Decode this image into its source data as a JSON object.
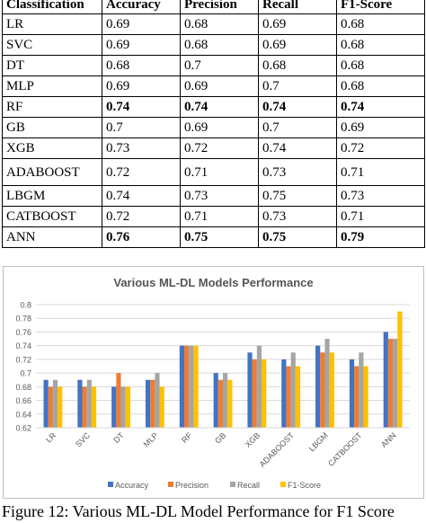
{
  "table": {
    "headers": [
      "Classification",
      "Accuracy",
      "Precision",
      "Recall",
      "F1-Score"
    ],
    "rows": [
      {
        "cells": [
          "LR",
          "0.69",
          "0.68",
          "0.69",
          "0.68"
        ],
        "bold": false,
        "tall": false
      },
      {
        "cells": [
          "SVC",
          "0.69",
          "0.68",
          "0.69",
          "0.68"
        ],
        "bold": false,
        "tall": false
      },
      {
        "cells": [
          "DT",
          "0.68",
          "0.7",
          "0.68",
          "0.68"
        ],
        "bold": false,
        "tall": false
      },
      {
        "cells": [
          "MLP",
          "0.69",
          "0.69",
          "0.7",
          "0.68"
        ],
        "bold": false,
        "tall": false
      },
      {
        "cells": [
          "RF",
          "0.74",
          "0.74",
          "0.74",
          "0.74"
        ],
        "bold": true,
        "tall": false
      },
      {
        "cells": [
          "GB",
          "0.7",
          "0.69",
          "0.7",
          "0.69"
        ],
        "bold": false,
        "tall": false
      },
      {
        "cells": [
          "XGB",
          "0.73",
          "0.72",
          "0.74",
          "0.72"
        ],
        "bold": false,
        "tall": false
      },
      {
        "cells": [
          "ADABOOST",
          "0.72",
          "0.71",
          "0.73",
          "0.71"
        ],
        "bold": false,
        "tall": true
      },
      {
        "cells": [
          "LBGM",
          "0.74",
          "0.73",
          "0.75",
          "0.73"
        ],
        "bold": false,
        "tall": false
      },
      {
        "cells": [
          "CATBOOST",
          "0.72",
          "0.71",
          "0.73",
          "0.71"
        ],
        "bold": false,
        "tall": false
      },
      {
        "cells": [
          "ANN",
          "0.76",
          "0.75",
          "0.75",
          "0.79"
        ],
        "bold": true,
        "tall": false
      }
    ]
  },
  "chart_data": {
    "type": "bar",
    "title": "Various  ML-DL Models Performance",
    "categories": [
      "LR",
      "SVC",
      "DT",
      "MLP",
      "RF",
      "GB",
      "XGB",
      "ADABOOST",
      "LBGM",
      "CATBOOST",
      "ANN"
    ],
    "series": [
      {
        "name": "Accuracy",
        "color": "#4472c4",
        "values": [
          0.69,
          0.69,
          0.68,
          0.69,
          0.74,
          0.7,
          0.73,
          0.72,
          0.74,
          0.72,
          0.76
        ]
      },
      {
        "name": "Precision",
        "color": "#ed7d31",
        "values": [
          0.68,
          0.68,
          0.7,
          0.69,
          0.74,
          0.69,
          0.72,
          0.71,
          0.73,
          0.71,
          0.75
        ]
      },
      {
        "name": "Recall",
        "color": "#a5a5a5",
        "values": [
          0.69,
          0.69,
          0.68,
          0.7,
          0.74,
          0.7,
          0.74,
          0.73,
          0.75,
          0.73,
          0.75
        ]
      },
      {
        "name": "F1-Score",
        "color": "#ffc000",
        "values": [
          0.68,
          0.68,
          0.68,
          0.68,
          0.74,
          0.69,
          0.72,
          0.71,
          0.73,
          0.71,
          0.79
        ]
      }
    ],
    "ylim": [
      0.62,
      0.8
    ],
    "yticks": [
      "0.62",
      "0.64",
      "0.66",
      "0.68",
      "0.7",
      "0.72",
      "0.74",
      "0.76",
      "0.78",
      "0.8"
    ],
    "grid": true,
    "legend": "bottom"
  },
  "caption": "Figure 12: Various ML-DL Model Performance for F1 Score"
}
